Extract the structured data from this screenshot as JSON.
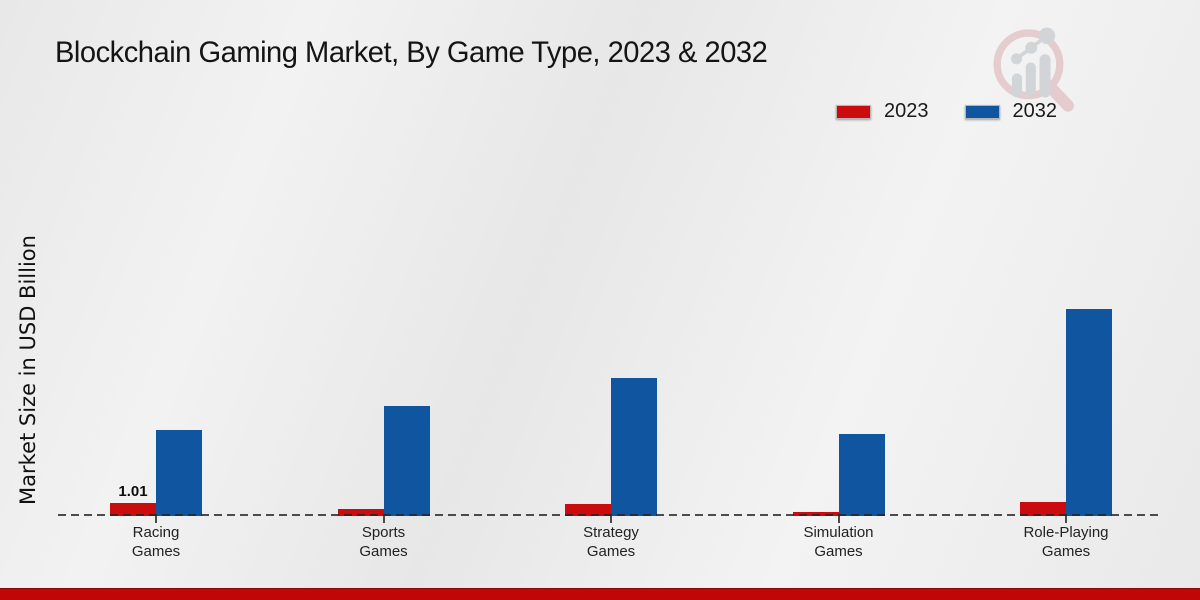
{
  "title": "Blockchain Gaming Market, By Game Type, 2023 & 2032",
  "y_axis_label": "Market Size in USD Billion",
  "legend": {
    "items": [
      {
        "label": "2023",
        "color": "#cb0c0e"
      },
      {
        "label": "2032",
        "color": "#10559f"
      }
    ]
  },
  "chart_data": {
    "type": "bar",
    "title": "Blockchain Gaming Market, By Game Type, 2023 & 2032",
    "xlabel": "",
    "ylabel": "Market Size in USD Billion",
    "categories": [
      "Racing Games",
      "Sports Games",
      "Strategy Games",
      "Simulation Games",
      "Role-Playing Games"
    ],
    "series": [
      {
        "name": "2023",
        "color": "#cb0c0e",
        "values": [
          1.01,
          0.55,
          0.95,
          0.33,
          1.05
        ]
      },
      {
        "name": "2032",
        "color": "#10559f",
        "values": [
          6.7,
          8.55,
          10.75,
          6.35,
          16.1
        ]
      }
    ],
    "annotations": [
      {
        "series_index": 0,
        "category_index": 0,
        "text": "1.01"
      }
    ],
    "ylim": [
      0,
      18
    ],
    "grid": false,
    "baseline_style": "dashed",
    "legend_position": "top-right",
    "axis_ticks_visible": false
  },
  "branding": {
    "logo_name": "magnifier-growth-chart-logo",
    "footer_bar_color": "#c00606"
  }
}
